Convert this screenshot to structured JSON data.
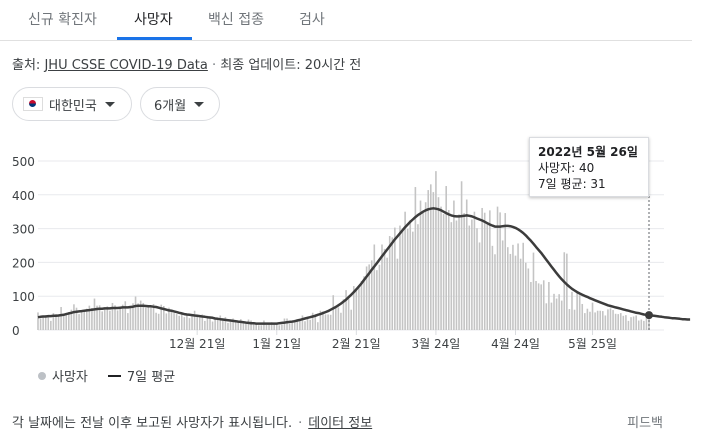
{
  "tabs": [
    "신규 확진자",
    "사망자",
    "백신 접종",
    "검사"
  ],
  "active_tab": 1,
  "source": {
    "prefix": "출처:",
    "link": "JHU CSSE COVID-19 Data",
    "separator": "·",
    "updated": "최종 업데이트: 20시간 전"
  },
  "filters": {
    "country": "대한민국",
    "period": "6개월"
  },
  "tooltip": {
    "date": "2022년 5월 26일",
    "deaths": "사망자: 40",
    "avg": "7일 평균: 31"
  },
  "legend": {
    "bars": "사망자",
    "line": "7일 평균"
  },
  "footer": {
    "note": "각 날짜에는 전날 이후 보고된 사망자가 표시됩니다.",
    "separator": "·",
    "data_info": "데이터 정보",
    "feedback": "피드백"
  },
  "colors": {
    "bar": "#c4c4c4",
    "line": "#3c3c3c",
    "accent": "#1a73e8"
  },
  "chart_data": {
    "type": "bar",
    "ylim": [
      0,
      500
    ],
    "yticks": [
      0,
      100,
      200,
      300,
      400,
      500
    ],
    "x_tick_labels": [
      "12월 21일",
      "1월 21일",
      "2월 21일",
      "3월 24일",
      "4월 24일",
      "5월 25일"
    ],
    "series": [
      {
        "name": "사망자",
        "type": "bar",
        "values": [
          52,
          34,
          43,
          44,
          41,
          27,
          50,
          47,
          43,
          68,
          44,
          48,
          53,
          60,
          76,
          66,
          47,
          55,
          59,
          63,
          72,
          65,
          93,
          72,
          73,
          55,
          61,
          70,
          57,
          80,
          73,
          58,
          63,
          75,
          85,
          50,
          67,
          79,
          99,
          79,
          87,
          80,
          66,
          69,
          69,
          77,
          51,
          48,
          75,
          71,
          49,
          66,
          56,
          50,
          47,
          42,
          53,
          38,
          48,
          35,
          46,
          57,
          43,
          37,
          46,
          27,
          42,
          40,
          25,
          33,
          32,
          43,
          28,
          38,
          21,
          30,
          34,
          23,
          23,
          32,
          19,
          18,
          31,
          28,
          19,
          22,
          14,
          14,
          28,
          15,
          16,
          23,
          16,
          20,
          14,
          16,
          34,
          34,
          19,
          21,
          30,
          32,
          30,
          43,
          26,
          40,
          30,
          51,
          47,
          23,
          57,
          55,
          46,
          46,
          45,
          103,
          72,
          67,
          51,
          91,
          118,
          93,
          60,
          130,
          123,
          126,
          145,
          159,
          188,
          194,
          206,
          253,
          177,
          193,
          253,
          240,
          214,
          278,
          274,
          303,
          211,
          309,
          294,
          350,
          299,
          325,
          291,
          423,
          313,
          383,
          346,
          378,
          414,
          431,
          408,
          470,
          393,
          365,
          343,
          426,
          355,
          319,
          383,
          324,
          342,
          440,
          346,
          386,
          309,
          327,
          350,
          301,
          259,
          361,
          347,
          318,
          354,
          249,
          224,
          365,
          348,
          265,
          346,
          245,
          225,
          252,
          220,
          256,
          211,
          258,
          199,
          182,
          142,
          229,
          145,
          138,
          135,
          147,
          79,
          142,
          81,
          107,
          93,
          106,
          87,
          230,
          226,
          62,
          113,
          60,
          109,
          103,
          77,
          50,
          63,
          54,
          81,
          52,
          57,
          57,
          56,
          43,
          61,
          64,
          59,
          48,
          47,
          50,
          42,
          44,
          27,
          38,
          40,
          43,
          28,
          31,
          27,
          37,
          40
        ]
      },
      {
        "name": "7일 평균",
        "type": "line",
        "values": [
          38,
          39,
          40,
          40,
          41,
          41,
          42,
          42,
          43,
          44,
          45,
          47,
          49,
          51,
          53,
          54,
          55,
          56,
          57,
          58,
          59,
          60,
          61,
          62,
          63,
          63,
          64,
          64,
          64,
          65,
          65,
          65,
          66,
          67,
          67,
          67,
          68,
          69,
          71,
          72,
          72,
          72,
          71,
          70,
          70,
          69,
          68,
          66,
          64,
          62,
          60,
          58,
          57,
          55,
          53,
          51,
          49,
          47,
          46,
          45,
          44,
          43,
          42,
          41,
          40,
          39,
          38,
          37,
          36,
          34,
          33,
          32,
          31,
          30,
          29,
          28,
          27,
          26,
          25,
          24,
          23,
          22,
          21,
          20,
          20,
          19,
          19,
          19,
          19,
          19,
          19,
          19,
          19,
          19,
          20,
          21,
          22,
          23,
          24,
          25,
          26,
          28,
          30,
          32,
          34,
          36,
          38,
          40,
          42,
          45,
          47,
          50,
          53,
          56,
          60,
          64,
          68,
          73,
          78,
          84,
          90,
          97,
          104,
          112,
          120,
          129,
          138,
          148,
          158,
          168,
          178,
          188,
          198,
          208,
          218,
          228,
          238,
          248,
          258,
          268,
          277,
          286,
          295,
          304,
          312,
          320,
          327,
          334,
          340,
          345,
          350,
          354,
          357,
          359,
          360,
          359,
          357,
          354,
          350,
          346,
          342,
          339,
          337,
          336,
          336,
          337,
          338,
          339,
          338,
          336,
          333,
          330,
          327,
          324,
          320,
          316,
          312,
          309,
          306,
          306,
          306,
          307,
          308,
          308,
          307,
          305,
          302,
          298,
          293,
          287,
          280,
          272,
          264,
          255,
          246,
          237,
          228,
          218,
          208,
          198,
          188,
          178,
          168,
          159,
          150,
          142,
          135,
          128,
          122,
          117,
          112,
          108,
          104,
          101,
          98,
          94,
          91,
          88,
          85,
          82,
          79,
          76,
          73,
          71,
          69,
          67,
          65,
          63,
          61,
          59,
          57,
          55,
          53,
          51,
          50,
          48,
          46,
          45,
          44,
          43,
          42,
          41,
          40,
          39,
          38,
          37,
          36,
          35,
          35,
          34,
          33,
          32,
          32,
          31,
          31
        ]
      }
    ]
  }
}
